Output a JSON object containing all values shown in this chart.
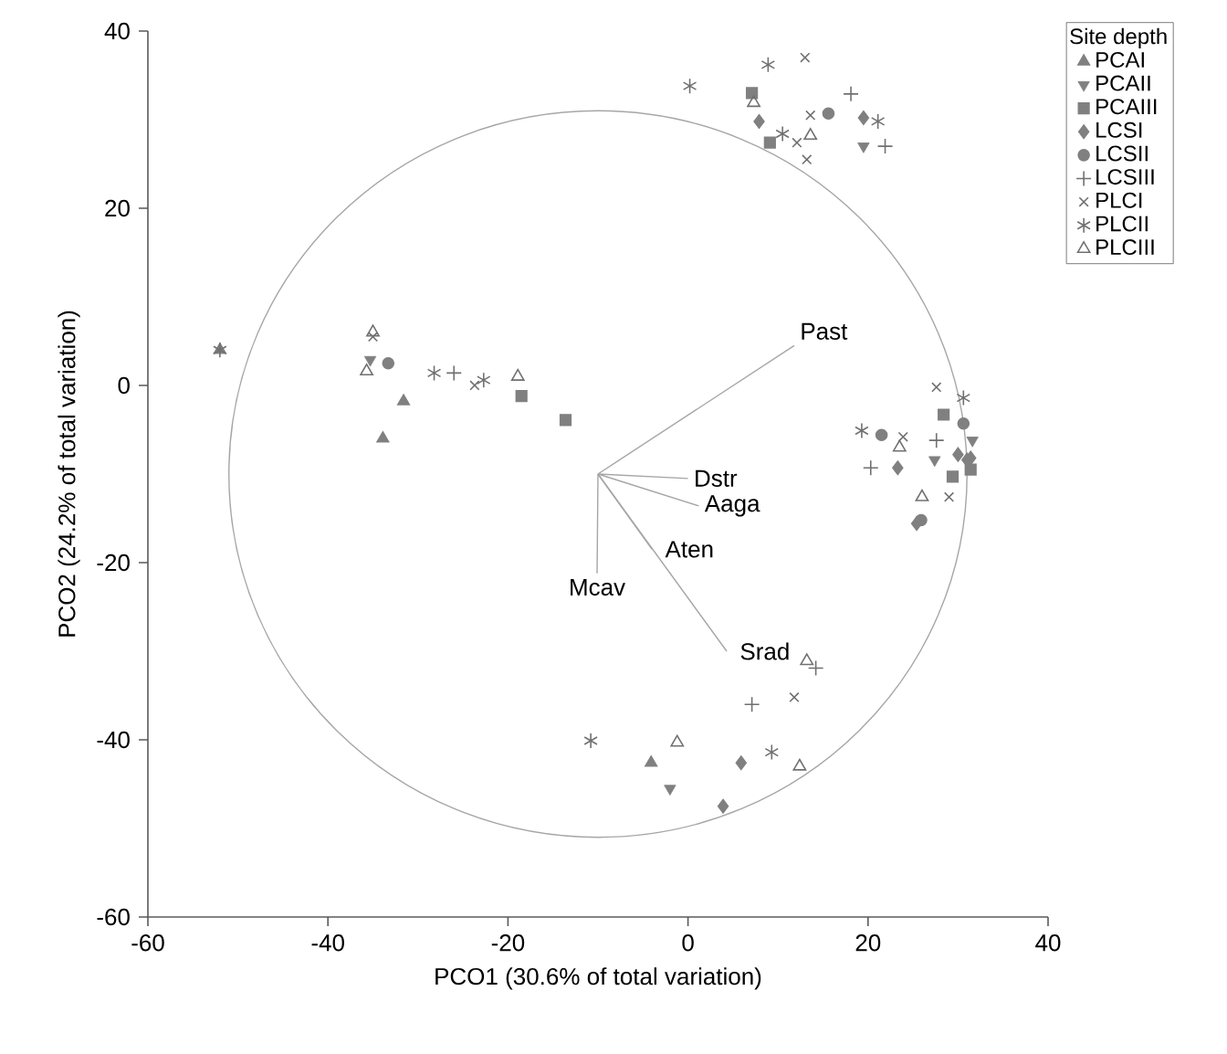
{
  "chart_data": {
    "type": "scatter",
    "xlabel": "PCO1 (30.6% of total variation)",
    "ylabel": "PCO2 (24.2% of total variation)",
    "legend_title": "Site depth",
    "legend": "top right",
    "xlim": [
      -60,
      40
    ],
    "xticks": [
      -60,
      -40,
      -20,
      0,
      20,
      40
    ],
    "ylim": [
      -60,
      40
    ],
    "yticks": [
      -60,
      -40,
      -20,
      0,
      20,
      40
    ],
    "series": [
      {
        "type": "line",
        "color": "#a6a6a6",
        "x": [
          -10,
          11.8
        ],
        "values": [
          -10,
          4.5
        ]
      },
      {
        "type": "line",
        "color": "#a6a6a6",
        "x": [
          -10,
          0
        ],
        "values": [
          -10,
          -10.5
        ]
      },
      {
        "type": "line",
        "color": "#a6a6a6",
        "x": [
          -10,
          1.2
        ],
        "values": [
          -10,
          -13.6
        ]
      },
      {
        "type": "line",
        "color": "#a6a6a6",
        "x": [
          -10,
          -4
        ],
        "values": [
          -10,
          -18.5
        ]
      },
      {
        "type": "line",
        "color": "#a6a6a6",
        "x": [
          -10,
          -10.1
        ],
        "values": [
          -10,
          -21.2
        ]
      },
      {
        "type": "line",
        "color": "#a6a6a6",
        "x": [
          -10,
          4.3
        ],
        "values": [
          -10,
          -30
        ]
      },
      {
        "name": "PCAI",
        "color": "#808080",
        "marker": "triangle",
        "x": [
          -52,
          -33.9,
          -31.6,
          -4.1
        ],
        "values": [
          4,
          -6,
          -1.8,
          -42.6
        ]
      },
      {
        "name": "PCAII",
        "color": "#808080",
        "marker": "triangle_down",
        "x": [
          -35.3,
          19.5,
          31.6,
          27.4,
          -2
        ],
        "values": [
          2.9,
          27,
          -6.2,
          -8.4,
          -45.5
        ]
      },
      {
        "name": "PCAIII",
        "color": "#808080",
        "marker": "square",
        "x": [
          -18.5,
          -13.6,
          7.1,
          9.1,
          28.4,
          29.4,
          31.4
        ],
        "values": [
          -1.2,
          -3.9,
          33,
          27.4,
          -3.3,
          -10.3,
          -9.5
        ]
      },
      {
        "name": "LCSI",
        "color": "#808080",
        "marker": "diamond",
        "x": [
          7.9,
          19.5,
          23.3,
          30,
          31.4,
          31,
          25.4,
          5.9,
          3.9
        ],
        "values": [
          29.8,
          30.2,
          -9.3,
          -7.8,
          -8.2,
          -8.4,
          -15.6,
          -42.6,
          -47.5
        ]
      },
      {
        "name": "LCSII",
        "color": "#808080",
        "marker": "circle",
        "x": [
          -33.3,
          15.6,
          30.6,
          21.5,
          25.9
        ],
        "values": [
          2.5,
          30.7,
          -4.3,
          -5.6,
          -15.2
        ]
      },
      {
        "name": "LCSIII",
        "color": "#707070",
        "marker": "plus",
        "x": [
          -26,
          18.1,
          21.9,
          27.6,
          20.3,
          14.2,
          7.1
        ],
        "values": [
          1.4,
          32.9,
          27,
          -6.2,
          -9.3,
          -31.9,
          -36
        ]
      },
      {
        "name": "PLCI",
        "color": "#707070",
        "marker": "cross",
        "x": [
          -35,
          -23.7,
          13,
          12.1,
          13.6,
          13.2,
          27.6,
          23.9,
          29,
          11.8
        ],
        "values": [
          5.5,
          0,
          37,
          27.4,
          30.5,
          25.5,
          -0.2,
          -5.8,
          -12.6,
          -35.2
        ]
      },
      {
        "name": "PLCII",
        "color": "#707070",
        "x": [
          -52,
          -28.2,
          -22.7,
          0.2,
          8.9,
          10.5,
          21.1,
          30.6,
          19.3,
          9.3,
          -10.8
        ],
        "values": [
          4,
          1.4,
          0.6,
          33.8,
          36.2,
          28.4,
          29.8,
          -1.4,
          -5.1,
          -41.4,
          -40.1
        ]
      },
      {
        "name": "PLCIII",
        "color": "#707070",
        "marker": "triangle_open",
        "x": [
          -35,
          -35.7,
          -18.9,
          7.3,
          13.6,
          23.5,
          26,
          13.2,
          -1.2,
          12.4
        ],
        "values": [
          6,
          1.6,
          1,
          31.9,
          28.2,
          -7,
          -12.6,
          -31.1,
          -40.3,
          -43
        ]
      }
    ],
    "annotations": [
      {
        "text": "Past",
        "x": 11.8,
        "y": 4.5
      },
      {
        "text": "Dstr",
        "x": 0,
        "y": -10.5
      },
      {
        "text": "Aaga",
        "x": 1.2,
        "y": -13.6
      },
      {
        "text": "Aten",
        "x": -4,
        "y": -18.5
      },
      {
        "text": "Mcav",
        "x": -10.1,
        "y": -21.2
      },
      {
        "text": "Srad",
        "x": 4.3,
        "y": -30
      }
    ]
  }
}
